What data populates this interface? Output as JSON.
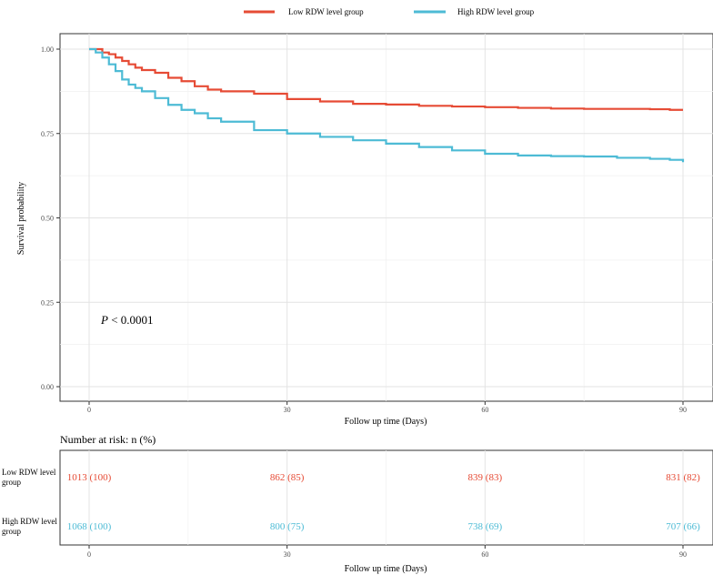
{
  "chart_data": {
    "type": "line",
    "subtype": "kaplan-meier",
    "ylabel": "Survival probability",
    "xlabel": "Follow up time (Days)",
    "xlim": [
      0,
      90
    ],
    "ylim": [
      0,
      1
    ],
    "x_ticks": [
      "0",
      "30",
      "60",
      "90"
    ],
    "y_ticks": [
      "0.00",
      "0.25",
      "0.50",
      "0.75",
      "1.00"
    ],
    "grid": true,
    "legend_position": "top",
    "annotation_italic": "P",
    "annotation_rest": " < 0.0001",
    "series": [
      {
        "name": "Low RDW level group",
        "color": "#E64B35",
        "points": [
          [
            0,
            1.0
          ],
          [
            1,
            1.0
          ],
          [
            2,
            0.99
          ],
          [
            3,
            0.985
          ],
          [
            4,
            0.975
          ],
          [
            5,
            0.965
          ],
          [
            6,
            0.955
          ],
          [
            7,
            0.945
          ],
          [
            8,
            0.938
          ],
          [
            10,
            0.93
          ],
          [
            12,
            0.915
          ],
          [
            14,
            0.905
          ],
          [
            16,
            0.89
          ],
          [
            18,
            0.88
          ],
          [
            20,
            0.875
          ],
          [
            25,
            0.868
          ],
          [
            30,
            0.852
          ],
          [
            35,
            0.845
          ],
          [
            40,
            0.838
          ],
          [
            45,
            0.836
          ],
          [
            50,
            0.832
          ],
          [
            55,
            0.83
          ],
          [
            60,
            0.828
          ],
          [
            65,
            0.826
          ],
          [
            70,
            0.824
          ],
          [
            75,
            0.823
          ],
          [
            80,
            0.823
          ],
          [
            85,
            0.822
          ],
          [
            88,
            0.82
          ],
          [
            90,
            0.82
          ]
        ]
      },
      {
        "name": "High RDW level group",
        "color": "#4DBBD5",
        "points": [
          [
            0,
            1.0
          ],
          [
            1,
            0.99
          ],
          [
            2,
            0.975
          ],
          [
            3,
            0.955
          ],
          [
            4,
            0.935
          ],
          [
            5,
            0.91
          ],
          [
            6,
            0.895
          ],
          [
            7,
            0.885
          ],
          [
            8,
            0.875
          ],
          [
            10,
            0.855
          ],
          [
            12,
            0.835
          ],
          [
            14,
            0.82
          ],
          [
            16,
            0.81
          ],
          [
            18,
            0.795
          ],
          [
            20,
            0.785
          ],
          [
            25,
            0.76
          ],
          [
            30,
            0.75
          ],
          [
            35,
            0.74
          ],
          [
            40,
            0.73
          ],
          [
            45,
            0.72
          ],
          [
            50,
            0.71
          ],
          [
            55,
            0.7
          ],
          [
            60,
            0.69
          ],
          [
            65,
            0.685
          ],
          [
            70,
            0.683
          ],
          [
            75,
            0.682
          ],
          [
            80,
            0.678
          ],
          [
            85,
            0.675
          ],
          [
            88,
            0.672
          ],
          [
            90,
            0.665
          ]
        ]
      }
    ],
    "risk_table": {
      "title": "Number at risk: n (%)",
      "xlabel": "Follow up time (Days)",
      "x_ticks": [
        "0",
        "30",
        "60",
        "90"
      ],
      "rows": [
        {
          "label_line1": "Low RDW level",
          "label_line2": "group",
          "color": "#E64B35",
          "values": [
            "1013 (100)",
            "862  (85)",
            "839  (83)",
            "831  (82)"
          ]
        },
        {
          "label_line1": "High RDW level",
          "label_line2": "group",
          "color": "#4DBBD5",
          "values": [
            "1068 (100)",
            "800  (75)",
            "738  (69)",
            "707  (66)"
          ]
        }
      ]
    }
  }
}
